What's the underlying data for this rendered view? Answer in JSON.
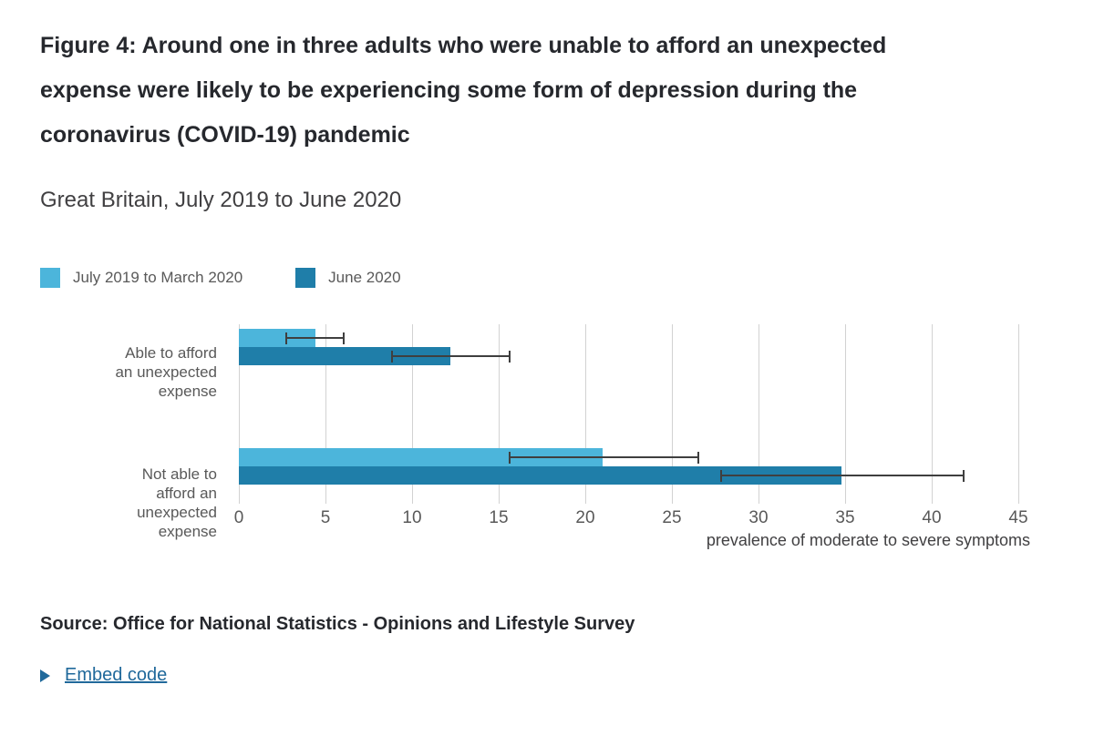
{
  "chart_data": {
    "type": "bar",
    "orientation": "horizontal",
    "title": "Figure 4: Around one in three adults who were unable to afford an unexpected expense were likely to be experiencing some form of depression during the coronavirus (COVID-19) pandemic",
    "subtitle": "Great Britain, July 2019 to June 2020",
    "categories": [
      "Able to afford an unexpected expense",
      "Not able to afford an unexpected expense"
    ],
    "category_label_lines": [
      [
        "Able to afford",
        "an unexpected",
        "expense"
      ],
      [
        "Not able to",
        "afford an",
        "unexpected",
        "expense"
      ]
    ],
    "series": [
      {
        "name": "July 2019 to March 2020",
        "color": "#4CB5DB",
        "values": [
          4.4,
          21.0
        ],
        "ci_low": [
          2.7,
          15.6
        ],
        "ci_high": [
          6.1,
          26.6
        ]
      },
      {
        "name": "June 2020",
        "color": "#1F7EA9",
        "values": [
          12.2,
          34.8
        ],
        "ci_low": [
          8.8,
          27.8
        ],
        "ci_high": [
          15.7,
          41.9
        ]
      }
    ],
    "xlabel": "prevalence of moderate to severe symptoms",
    "xlim": [
      0,
      45
    ],
    "xticks": [
      0,
      5,
      10,
      15,
      20,
      25,
      30,
      35,
      40,
      45
    ],
    "grid": true,
    "error_bars": true,
    "legend_position": "top-left"
  },
  "footer": {
    "source": "Source: Office for National Statistics - Opinions and Lifestyle Survey",
    "embed_label": "Embed code",
    "embed_icon": "play-triangle-icon"
  },
  "colors": {
    "grid": "#d2d2d2",
    "error_bar": "#3f3f3f",
    "link": "#20699B",
    "title_text": "#26282d",
    "subtitle_text": "#414042",
    "muted_text": "#595959",
    "background": "#ffffff"
  }
}
